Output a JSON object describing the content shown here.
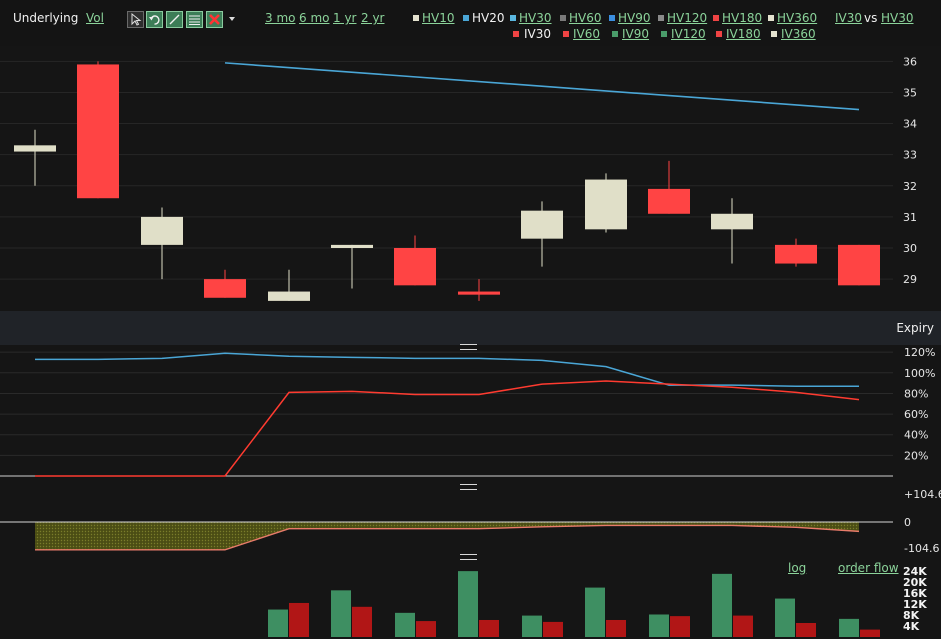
{
  "toolbar": {
    "underlying_label": "Underlying",
    "vol_label": "Vol",
    "tools": [
      {
        "name": "pointer-tool-icon",
        "active": false
      },
      {
        "name": "undo-tool-icon",
        "active": true
      },
      {
        "name": "line-tool-icon",
        "active": true
      },
      {
        "name": "fibonacci-tool-icon",
        "active": true
      },
      {
        "name": "delete-drawings-icon",
        "active": true
      },
      {
        "name": "tools-dropdown-icon",
        "active": false
      }
    ],
    "ranges": [
      "3 mo",
      "6 mo",
      "1 yr",
      "2 yr"
    ]
  },
  "legend": {
    "hv_row": [
      {
        "label": "HV10",
        "color": "#e4e2cf",
        "linked": true
      },
      {
        "label": "HV20",
        "color": "#4aa6d6",
        "linked": false
      },
      {
        "label": "HV30",
        "color": "#5ab7e0",
        "linked": true
      },
      {
        "label": "HV60",
        "color": "#7a7a7a",
        "linked": true
      },
      {
        "label": "HV90",
        "color": "#3b8fe0",
        "linked": true
      },
      {
        "label": "HV120",
        "color": "#8a8a8a",
        "linked": true
      },
      {
        "label": "HV180",
        "color": "#ef4444",
        "linked": true
      },
      {
        "label": "HV360",
        "color": "#e4e2cf",
        "linked": true
      }
    ],
    "iv_row": [
      {
        "label": "IV30",
        "color": "#ef4444",
        "linked": false
      },
      {
        "label": "IV60",
        "color": "#ef4444",
        "linked": true
      },
      {
        "label": "IV90",
        "color": "#4a9c6a",
        "linked": true
      },
      {
        "label": "IV120",
        "color": "#4a9c6a",
        "linked": true
      },
      {
        "label": "IV180",
        "color": "#ef4444",
        "linked": true
      },
      {
        "label": "IV360",
        "color": "#e4e2cf",
        "linked": true
      }
    ],
    "compare_left": "IV30",
    "compare_vs": "vs",
    "compare_right": "HV30"
  },
  "separator": {
    "label": "Expiry"
  },
  "bottom_links": {
    "log": "log",
    "order_flow": "order flow"
  },
  "colors": {
    "up": "#e0dfc8",
    "down": "#ff4444",
    "hv": "#4aa6d6",
    "iv": "#ff3b30",
    "vol_green": "#3e8f62",
    "vol_red": "#b11616"
  },
  "chart_data": [
    {
      "type": "candlestick",
      "ylim": [
        28.2,
        36.3
      ],
      "yticks": [
        "29",
        "30",
        "31",
        "32",
        "33",
        "34",
        "35",
        "36"
      ],
      "candles": [
        {
          "open": 33.1,
          "close": 33.3,
          "high": 33.8,
          "low": 32.0
        },
        {
          "open": 35.9,
          "close": 31.6,
          "high": 36.0,
          "low": 31.6
        },
        {
          "open": 30.1,
          "close": 31.0,
          "high": 31.3,
          "low": 29.0
        },
        {
          "open": 29.0,
          "close": 28.4,
          "high": 29.3,
          "low": 28.4
        },
        {
          "open": 28.3,
          "close": 28.6,
          "high": 29.3,
          "low": 28.3
        },
        {
          "open": 30.0,
          "close": 30.1,
          "high": 30.1,
          "low": 28.7
        },
        {
          "open": 30.0,
          "close": 28.8,
          "high": 30.4,
          "low": 28.8
        },
        {
          "open": 28.6,
          "close": 28.5,
          "high": 29.0,
          "low": 28.3
        },
        {
          "open": 30.3,
          "close": 31.2,
          "high": 31.5,
          "low": 29.4
        },
        {
          "open": 30.6,
          "close": 32.2,
          "high": 32.4,
          "low": 30.5
        },
        {
          "open": 31.9,
          "close": 31.1,
          "high": 32.8,
          "low": 31.1
        },
        {
          "open": 30.6,
          "close": 31.1,
          "high": 31.6,
          "low": 29.5
        },
        {
          "open": 30.1,
          "close": 29.5,
          "high": 30.3,
          "low": 29.4
        },
        {
          "open": 30.1,
          "close": 28.8,
          "high": 30.1,
          "low": 28.8
        }
      ],
      "overlay_line": {
        "from": 35.95,
        "to": 34.45,
        "start_index": 3
      }
    },
    {
      "type": "line",
      "ylim": [
        0,
        125
      ],
      "yticks": [
        "20%",
        "40%",
        "60%",
        "80%",
        "100%",
        "120%"
      ],
      "series": [
        {
          "name": "HV20",
          "values": [
            113,
            113,
            114,
            119,
            116,
            115,
            114,
            114,
            112,
            106,
            88,
            88,
            87,
            87
          ]
        },
        {
          "name": "IV30",
          "values": [
            0,
            0,
            0,
            0,
            81,
            82,
            79,
            79,
            89,
            92,
            89,
            86,
            81,
            74
          ]
        }
      ]
    },
    {
      "type": "area",
      "ylim": [
        -104.6,
        104.6
      ],
      "yticks": [
        "+104.6",
        "0",
        "-104.6"
      ],
      "values": [
        -104,
        -104,
        -104,
        -104,
        -25,
        -25,
        -25,
        -25,
        -18,
        -13,
        -13,
        -13,
        -20,
        -35
      ]
    },
    {
      "type": "bar",
      "ylim": [
        0,
        25500
      ],
      "yticks": [
        "4K",
        "8K",
        "12K",
        "16K",
        "20K",
        "24K"
      ],
      "series": [
        {
          "name": "calls",
          "values": [
            10000,
            17000,
            8800,
            24000,
            7800,
            18000,
            8200,
            23000,
            14000,
            6600
          ]
        },
        {
          "name": "puts",
          "values": [
            12400,
            11000,
            5800,
            6200,
            5500,
            6200,
            7600,
            7800,
            5100,
            2700
          ]
        }
      ]
    }
  ]
}
